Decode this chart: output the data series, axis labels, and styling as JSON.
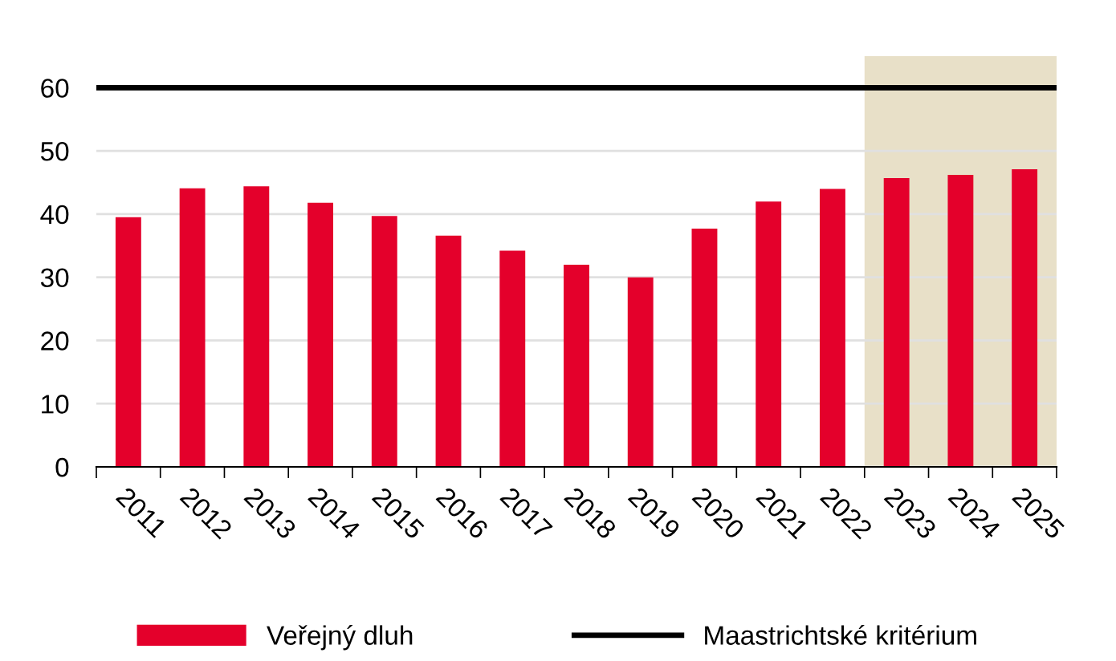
{
  "chart_data": {
    "type": "bar",
    "categories": [
      "2011",
      "2012",
      "2013",
      "2014",
      "2015",
      "2016",
      "2017",
      "2018",
      "2019",
      "2020",
      "2021",
      "2022",
      "2023",
      "2024",
      "2025"
    ],
    "series": [
      {
        "name": "Veřejný dluh",
        "color": "#e4002b",
        "values": [
          39.5,
          44.1,
          44.4,
          41.8,
          39.7,
          36.6,
          34.2,
          32.0,
          30.0,
          37.7,
          42.0,
          44.0,
          45.7,
          46.2,
          47.1
        ]
      }
    ],
    "ylim": [
      0,
      65
    ],
    "yticks": [
      0,
      10,
      20,
      30,
      40,
      50,
      60
    ],
    "grid": "y",
    "legend": "bottom",
    "ref_lines": [
      {
        "axis": "y",
        "value": 60,
        "label": "Maastrichtské kritérium",
        "color": "#000000",
        "line_style": "solid"
      }
    ],
    "bands": [
      {
        "axis": "x",
        "from": "2023",
        "to": "2025",
        "color": "#e8e0c8"
      }
    ]
  }
}
